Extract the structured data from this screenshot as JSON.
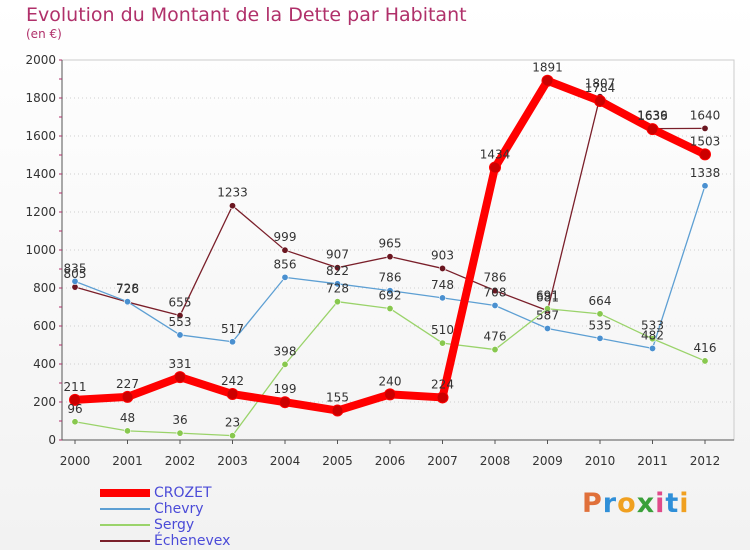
{
  "title": "Evolution du Montant de la Dette par Habitant",
  "subtitle": "(en €)",
  "brand": {
    "letters": [
      "P",
      "r",
      "o",
      "x",
      "i",
      "t",
      "i"
    ],
    "colors": [
      "#e0703a",
      "#2f8fd8",
      "#f0a020",
      "#3aa03a",
      "#e04a8a",
      "#2f8fd8",
      "#f0a020"
    ]
  },
  "chart_data": {
    "type": "line",
    "x": [
      "2000",
      "2001",
      "2002",
      "2003",
      "2004",
      "2005",
      "2006",
      "2007",
      "2008",
      "2009",
      "2010",
      "2011",
      "2012"
    ],
    "yticks": [
      "0",
      "200",
      "400",
      "600",
      "800",
      "1000",
      "1200",
      "1400",
      "1600",
      "1800",
      "2000"
    ],
    "ylim": [
      0,
      2000
    ],
    "grid": "horizontal dotted",
    "series": [
      {
        "name": "Échenevex",
        "color": "#7a1f2a",
        "marker": "#6a1620",
        "values": [
          805,
          726,
          655,
          1233,
          999,
          907,
          965,
          903,
          786,
          681,
          1807,
          1639,
          1640
        ]
      },
      {
        "name": "Chevry",
        "color": "#5d9fd3",
        "marker": "#4a90d0",
        "values": [
          835,
          728,
          553,
          517,
          856,
          822,
          786,
          748,
          708,
          587,
          535,
          482,
          1338
        ]
      },
      {
        "name": "Sergy",
        "color": "#9ad36a",
        "marker": "#88c84e",
        "values": [
          96,
          48,
          36,
          23,
          398,
          728,
          692,
          510,
          476,
          691,
          664,
          533,
          416
        ]
      },
      {
        "name": "CROZET",
        "color": "#ff0000",
        "marker": "#cc0000",
        "values": [
          211,
          227,
          331,
          242,
          199,
          155,
          240,
          224,
          1434,
          1891,
          1784,
          1636,
          1503
        ]
      }
    ],
    "legend": [
      "CROZET",
      "Chevry",
      "Sergy",
      "Échenevex"
    ],
    "legend_position": "bottom-left"
  }
}
